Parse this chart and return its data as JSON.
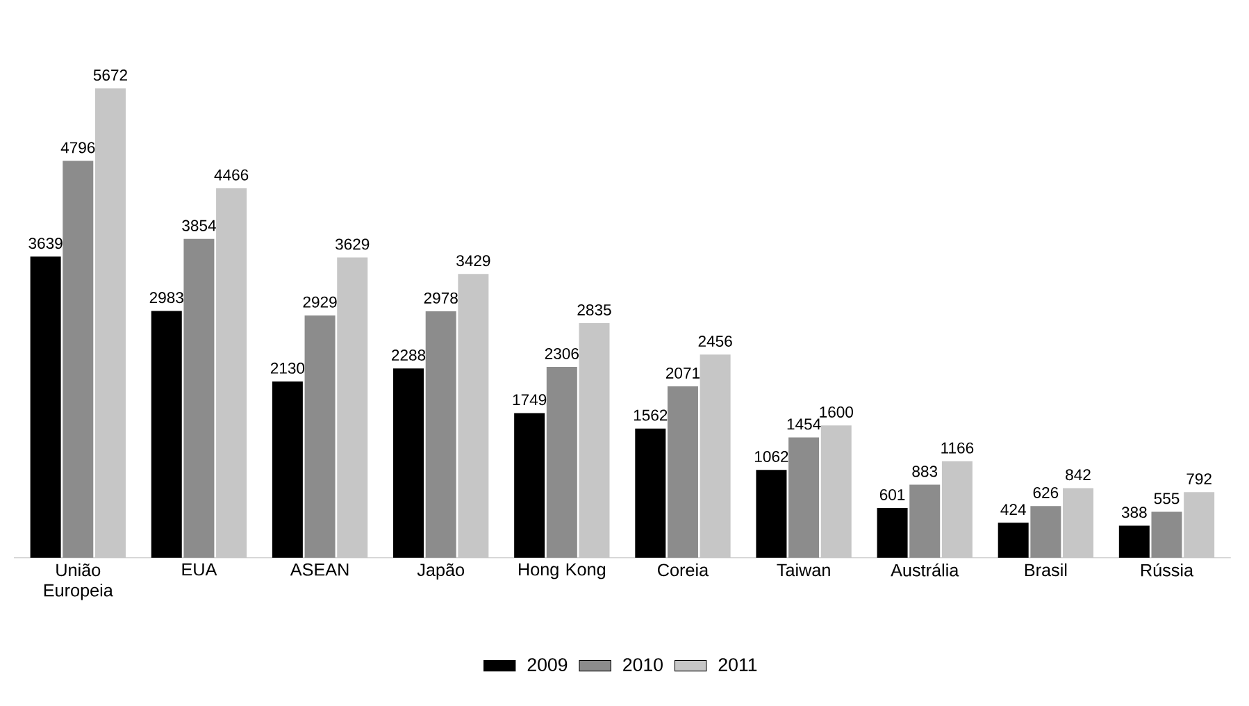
{
  "chart_data": {
    "type": "bar",
    "categories": [
      "União Europeia",
      "EUA",
      "ASEAN",
      "Japão",
      "Hong Kong",
      "Coreia",
      "Taiwan",
      "Austrália",
      "Brasil",
      "Rússia"
    ],
    "series": [
      {
        "name": "2009",
        "color": "#000000",
        "values": [
          3639,
          2983,
          2130,
          2288,
          1749,
          1562,
          1062,
          601,
          424,
          388
        ]
      },
      {
        "name": "2010",
        "color": "#8c8c8c",
        "values": [
          4796,
          3854,
          2929,
          2978,
          2306,
          2071,
          1454,
          883,
          626,
          555
        ]
      },
      {
        "name": "2011",
        "color": "#c6c6c6",
        "values": [
          5672,
          4466,
          3629,
          3429,
          2835,
          2456,
          1600,
          1166,
          842,
          792
        ]
      }
    ],
    "data_labels": true,
    "legend": "bottom"
  }
}
